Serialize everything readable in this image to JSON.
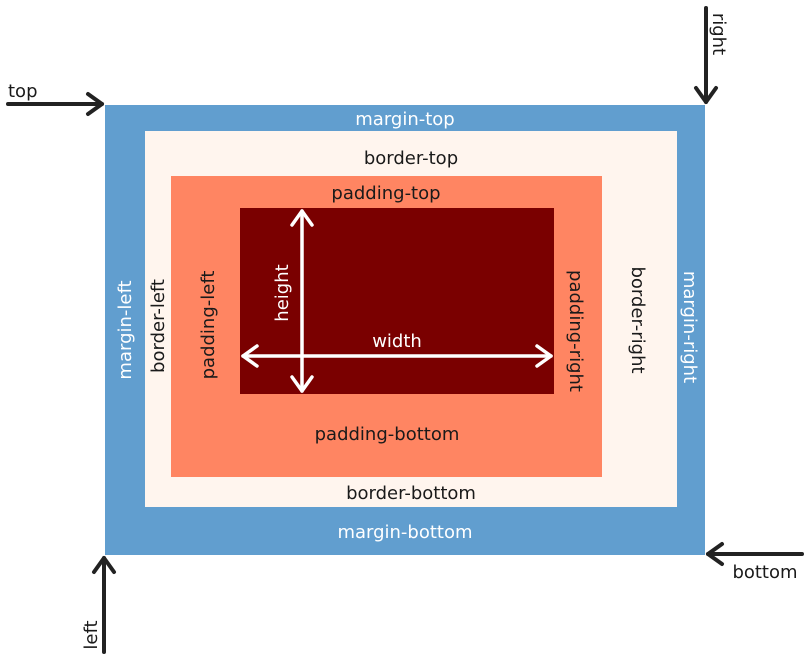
{
  "colors": {
    "margin": "#619ecf",
    "border": "#fff5ee",
    "padding": "#ff8562",
    "content": "#7a0000",
    "arrow_dark": "#222222",
    "arrow_light": "#ffffff"
  },
  "labels": {
    "margin_top": "margin-top",
    "margin_bottom": "margin-bottom",
    "margin_left": "margin-left",
    "margin_right": "margin-right",
    "border_top": "border-top",
    "border_bottom": "border-bottom",
    "border_left": "border-left",
    "border_right": "border-right",
    "padding_top": "padding-top",
    "padding_bottom": "padding-bottom",
    "padding_left": "padding-left",
    "padding_right": "padding-right",
    "width": "width",
    "height": "height",
    "top": "top",
    "bottom": "bottom",
    "left": "left",
    "right": "right"
  }
}
